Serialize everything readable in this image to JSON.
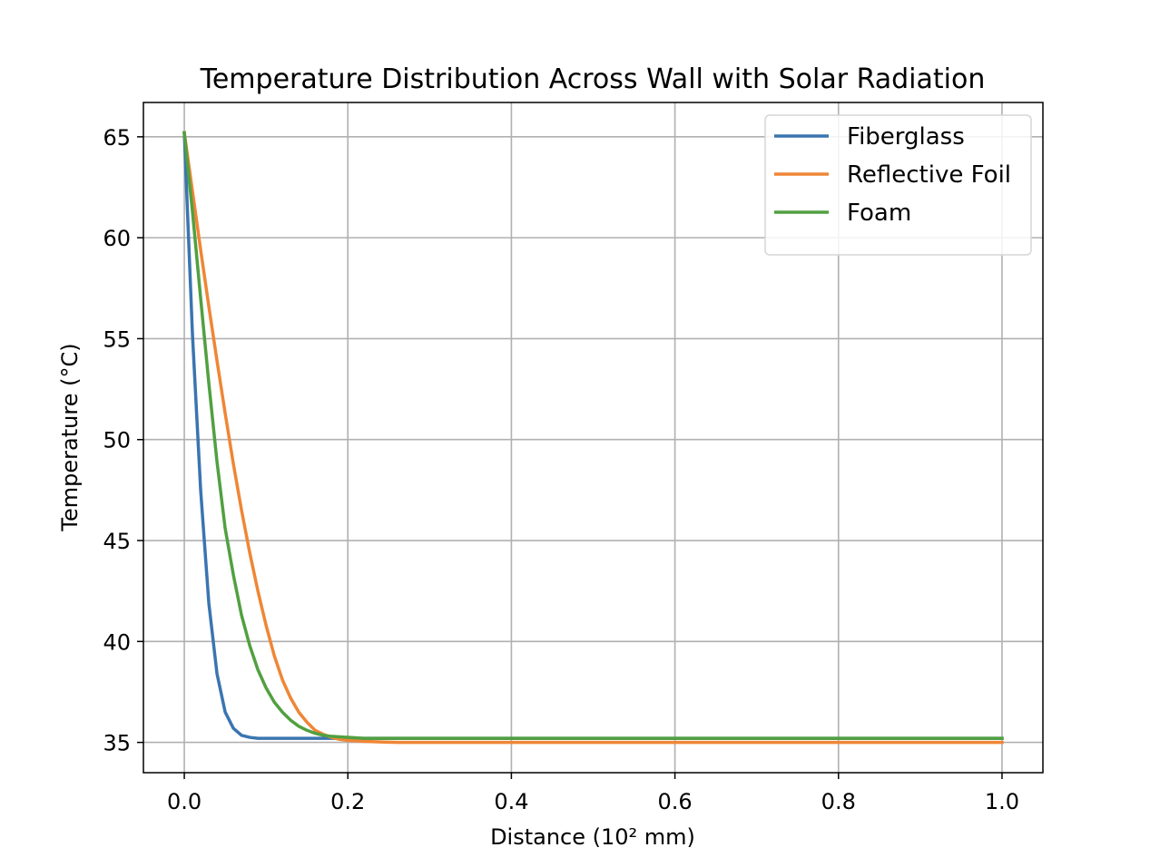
{
  "chart_data": {
    "type": "line",
    "title": "Temperature Distribution Across Wall with Solar Radiation",
    "xlabel": "Distance (10² mm)",
    "ylabel": "Temperature (°C)",
    "xlim": [
      -0.05,
      1.05
    ],
    "ylim": [
      33.5,
      66.7
    ],
    "x_ticks": [
      0.0,
      0.2,
      0.4,
      0.6,
      0.8,
      1.0
    ],
    "x_tick_labels": [
      "0.0",
      "0.2",
      "0.4",
      "0.6",
      "0.8",
      "1.0"
    ],
    "y_ticks": [
      35,
      40,
      45,
      50,
      55,
      60,
      65
    ],
    "y_tick_labels": [
      "35",
      "40",
      "45",
      "50",
      "55",
      "60",
      "65"
    ],
    "grid": true,
    "legend_position": "top-right",
    "series": [
      {
        "name": "Fiberglass",
        "color": "#3a75b0",
        "x": [
          0.0,
          0.01,
          0.02,
          0.03,
          0.04,
          0.05,
          0.06,
          0.07,
          0.08,
          0.09,
          0.1,
          0.15,
          0.2,
          0.3,
          0.5,
          0.7,
          1.0
        ],
        "y": [
          65.2,
          55.2,
          47.5,
          41.9,
          38.4,
          36.5,
          35.7,
          35.35,
          35.25,
          35.2,
          35.2,
          35.2,
          35.2,
          35.2,
          35.2,
          35.2,
          35.2
        ]
      },
      {
        "name": "Reflective Foil",
        "color": "#ef8636",
        "x": [
          0.0,
          0.01,
          0.02,
          0.03,
          0.04,
          0.05,
          0.06,
          0.07,
          0.08,
          0.09,
          0.1,
          0.11,
          0.12,
          0.13,
          0.14,
          0.15,
          0.16,
          0.17,
          0.18,
          0.19,
          0.2,
          0.22,
          0.24,
          0.26,
          0.28,
          0.3,
          0.4,
          0.6,
          0.8,
          1.0
        ],
        "y": [
          65.2,
          62.3,
          59.4,
          56.6,
          53.9,
          51.3,
          48.8,
          46.5,
          44.4,
          42.5,
          40.8,
          39.3,
          38.1,
          37.2,
          36.5,
          36.0,
          35.6,
          35.4,
          35.25,
          35.15,
          35.1,
          35.05,
          35.02,
          35.0,
          35.0,
          35.0,
          35.0,
          35.0,
          35.0,
          35.0
        ]
      },
      {
        "name": "Foam",
        "color": "#51a040",
        "x": [
          0.0,
          0.01,
          0.02,
          0.03,
          0.04,
          0.05,
          0.06,
          0.07,
          0.08,
          0.09,
          0.1,
          0.11,
          0.12,
          0.13,
          0.14,
          0.15,
          0.16,
          0.17,
          0.18,
          0.2,
          0.22,
          0.25,
          0.3,
          0.5,
          0.7,
          1.0
        ],
        "y": [
          65.2,
          61.3,
          57.0,
          52.8,
          48.9,
          45.6,
          43.3,
          41.3,
          39.8,
          38.6,
          37.7,
          37.0,
          36.5,
          36.1,
          35.8,
          35.6,
          35.45,
          35.35,
          35.3,
          35.25,
          35.2,
          35.2,
          35.2,
          35.2,
          35.2,
          35.2
        ]
      }
    ]
  }
}
